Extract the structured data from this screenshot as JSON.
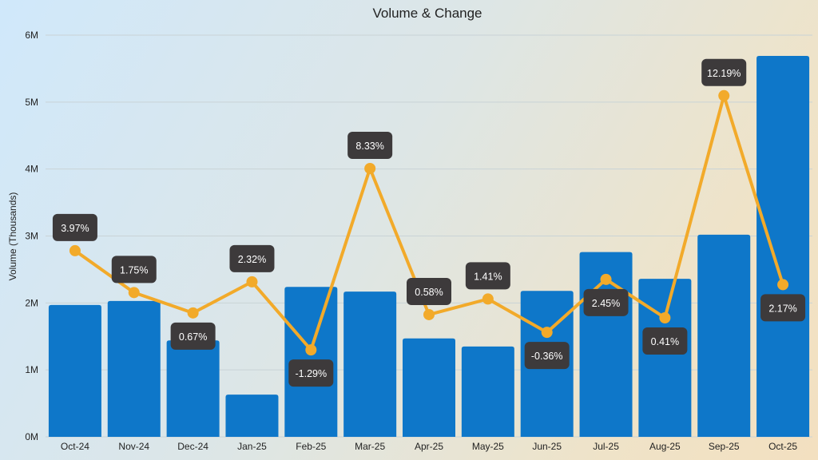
{
  "chart_data": {
    "type": "bar+line",
    "title": "Volume & Change",
    "ylabel": "Volume (Thousands)",
    "xlabel": "",
    "ylim": [
      0,
      6
    ],
    "yticks": [
      "0M",
      "1M",
      "2M",
      "3M",
      "4M",
      "5M",
      "6M"
    ],
    "y2lim": [
      -5.9,
      15.4
    ],
    "grid": true,
    "categories": [
      "Oct-24",
      "Nov-24",
      "Dec-24",
      "Jan-25",
      "Feb-25",
      "Mar-25",
      "Apr-25",
      "May-25",
      "Jun-25",
      "Jul-25",
      "Aug-25",
      "Sep-25",
      "Oct-25"
    ],
    "series": [
      {
        "type": "bar",
        "axis": "left",
        "unit": "M",
        "color": "#0e77c9",
        "values": [
          1.97,
          2.03,
          1.44,
          0.63,
          2.24,
          2.17,
          1.47,
          1.35,
          2.18,
          2.76,
          2.36,
          3.02,
          5.69
        ]
      },
      {
        "type": "line",
        "axis": "right-hidden",
        "color": "#f2aa2a",
        "values": [
          3.97,
          1.75,
          0.67,
          2.32,
          -1.29,
          8.33,
          0.58,
          1.41,
          -0.36,
          2.45,
          0.41,
          12.19,
          2.17
        ],
        "labels": [
          "3.97%",
          "1.75%",
          "0.67%",
          "2.32%",
          "-1.29%",
          "8.33%",
          "0.58%",
          "1.41%",
          "-0.36%",
          "2.45%",
          "0.41%",
          "12.19%",
          "2.17%"
        ]
      }
    ],
    "label_box_color": "#3d3a3b"
  }
}
